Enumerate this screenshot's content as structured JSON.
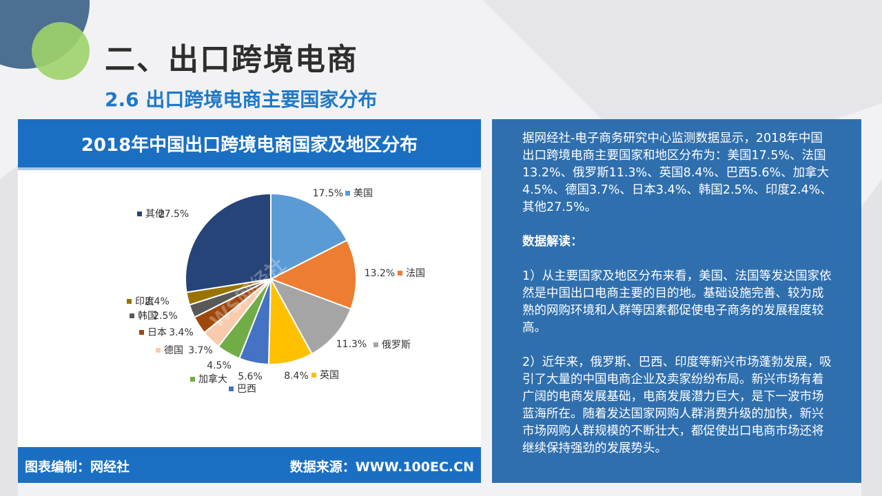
{
  "slide": {
    "title": "二、出口跨境电商",
    "subtitle": "2.6 出口跨境电商主要国家分布"
  },
  "chart_data": {
    "type": "pie",
    "title": "2018年中国出口跨境电商国家及地区分布",
    "categories": [
      "美国",
      "法国",
      "俄罗斯",
      "英国",
      "巴西",
      "加拿大",
      "德国",
      "日本",
      "韩国",
      "印度",
      "其他"
    ],
    "values": [
      17.5,
      13.2,
      11.3,
      8.4,
      5.6,
      4.5,
      3.7,
      3.4,
      2.5,
      2.4,
      27.5
    ],
    "labels": [
      "17.5%",
      "13.2%",
      "11.3%",
      "8.4%",
      "5.6%",
      "4.5%",
      "3.7%",
      "3.4%",
      "2.5%",
      "2.4%",
      "27.5%"
    ],
    "colors": [
      "#5b9bd5",
      "#ed7d31",
      "#a5a5a5",
      "#ffc000",
      "#4472c4",
      "#70ad47",
      "#f8cbad",
      "#9e480e",
      "#595959",
      "#997300",
      "#264478"
    ],
    "start_angle_deg": 0,
    "direction": "clockwise",
    "legend": "labels-beside-slices",
    "watermark": "WS网经社"
  },
  "chart_footer": {
    "left": "图表编制：网经社",
    "right": "数据来源：WWW.100EC.CN"
  },
  "text_panel": {
    "intro": "据网经社-电子商务研究中心监测数据显示，2018年中国出口跨境电商主要国家和地区分布为：美国17.5%、法国13.2%、俄罗斯11.3%、英国8.4%、巴西5.6%、加拿大4.5%、德国3.7%、日本3.4%、韩国2.5%、印度2.4%、其他27.5%。",
    "heading": "数据解读：",
    "point1": "1）从主要国家及地区分布来看，美国、法国等发达国家依然是中国出口电商主要的目的地。基础设施完善、较为成熟的网购环境和人群等因素都促使电子商务的发展程度较高。",
    "point2": "2）近年来，俄罗斯、巴西、印度等新兴市场蓬勃发展，吸引了大量的中国电商企业及卖家纷纷布局。新兴市场有着广阔的电商发展基础，电商发展潜力巨大，是下一波市场蓝海所在。随着发达国家网购人群消费升级的加快，新兴市场网购人群规模的不断壮大，都促使出口电商市场还将继续保持强劲的发展势头。"
  }
}
